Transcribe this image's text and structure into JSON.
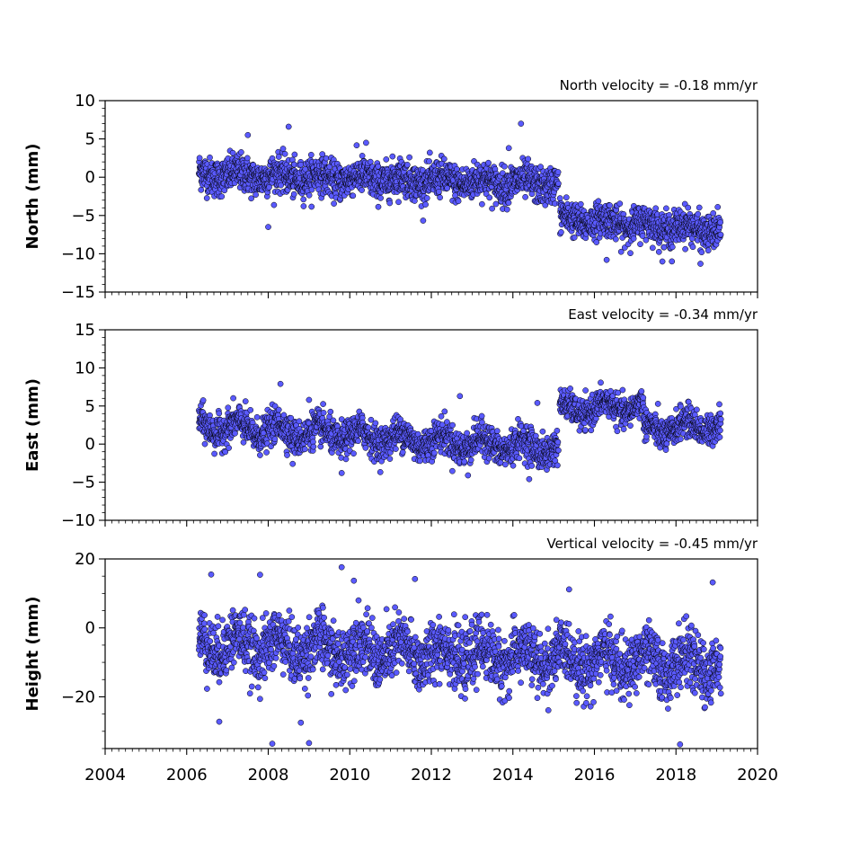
{
  "chart_data": {
    "type": "scatter",
    "marker_color": "#5a5aff",
    "marker_edge_color": "#000000",
    "xlim": [
      2004,
      2020
    ],
    "x_ticks": [
      "2004",
      "2006",
      "2008",
      "2010",
      "2012",
      "2014",
      "2016",
      "2018",
      "2020"
    ],
    "panels": [
      {
        "ylabel": "North (mm)",
        "annotation": "North velocity = -0.18 mm/yr",
        "ylim": [
          -15,
          10
        ],
        "y_ticks": [
          {
            "value": 10,
            "label": "10"
          },
          {
            "value": 5,
            "label": "5"
          },
          {
            "value": 0,
            "label": "0"
          },
          {
            "value": -5,
            "label": "−5"
          },
          {
            "value": -10,
            "label": "−10"
          },
          {
            "value": -15,
            "label": "−15"
          }
        ],
        "segments": [
          {
            "x_start": 2006.3,
            "x_end": 2015.12,
            "mean_start": 0.4,
            "mean_end": -0.9,
            "spread": 1.4
          },
          {
            "x_start": 2015.15,
            "x_end": 2019.1,
            "mean_start": -5.4,
            "mean_end": -7.0,
            "spread": 1.3
          }
        ],
        "seasonal_amplitude": 0.5,
        "outliers": [
          [
            2008.5,
            6.6
          ],
          [
            2010.4,
            4.5
          ],
          [
            2007.5,
            5.5
          ],
          [
            2014.2,
            7.0
          ],
          [
            2013.9,
            3.8
          ],
          [
            2008.0,
            -6.5
          ],
          [
            2017.9,
            -11.0
          ],
          [
            2018.6,
            -11.3
          ],
          [
            2016.3,
            -10.8
          ]
        ]
      },
      {
        "ylabel": "East (mm)",
        "annotation": "East velocity = -0.34 mm/yr",
        "ylim": [
          -10,
          15
        ],
        "y_ticks": [
          {
            "value": 15,
            "label": "15"
          },
          {
            "value": 10,
            "label": "10"
          },
          {
            "value": 5,
            "label": "5"
          },
          {
            "value": 0,
            "label": "0"
          },
          {
            "value": -5,
            "label": "−5"
          },
          {
            "value": -10,
            "label": "−10"
          }
        ],
        "segments": [
          {
            "x_start": 2006.3,
            "x_end": 2015.12,
            "mean_start": 2.4,
            "mean_end": -0.6,
            "spread": 1.3
          },
          {
            "x_start": 2015.15,
            "x_end": 2017.2,
            "mean_start": 4.4,
            "mean_end": 5.0,
            "spread": 1.1
          },
          {
            "x_start": 2017.2,
            "x_end": 2019.1,
            "mean_start": 1.8,
            "mean_end": 2.6,
            "spread": 1.2
          }
        ],
        "seasonal_amplitude": 0.9,
        "outliers": [
          [
            2008.3,
            7.9
          ],
          [
            2009.0,
            5.8
          ],
          [
            2012.7,
            6.3
          ],
          [
            2014.6,
            5.4
          ],
          [
            2009.8,
            -3.8
          ],
          [
            2012.9,
            -4.1
          ],
          [
            2014.4,
            -4.6
          ],
          [
            2008.6,
            -2.6
          ]
        ]
      },
      {
        "ylabel": "Height (mm)",
        "annotation": "Vertical velocity = -0.45 mm/yr",
        "ylim": [
          -35,
          20
        ],
        "y_ticks": [
          {
            "value": 20,
            "label": "20"
          },
          {
            "value": 0,
            "label": "0"
          },
          {
            "value": -20,
            "label": "−20"
          }
        ],
        "segments": [
          {
            "x_start": 2006.3,
            "x_end": 2019.1,
            "mean_start": -4.5,
            "mean_end": -11.0,
            "spread": 5.0
          }
        ],
        "seasonal_amplitude": 3.0,
        "outliers": [
          [
            2009.8,
            17.6
          ],
          [
            2006.6,
            15.5
          ],
          [
            2007.8,
            15.4
          ],
          [
            2011.6,
            14.2
          ],
          [
            2010.1,
            13.7
          ],
          [
            2018.9,
            13.2
          ],
          [
            2008.1,
            -33.6
          ],
          [
            2009.0,
            -33.4
          ],
          [
            2018.1,
            -33.8
          ],
          [
            2008.8,
            -27.5
          ],
          [
            2006.8,
            -27.2
          ]
        ]
      }
    ]
  }
}
